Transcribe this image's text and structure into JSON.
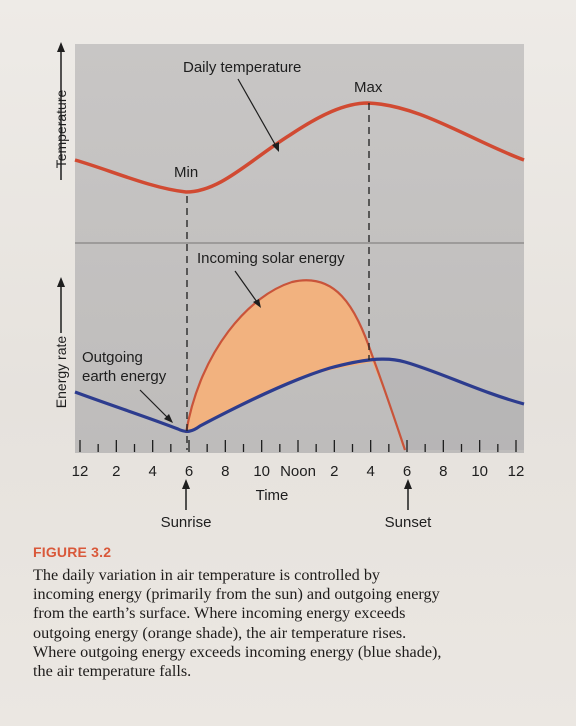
{
  "figure": {
    "labels": {
      "daily_temperature": "Daily temperature",
      "max": "Max",
      "min": "Min",
      "incoming_solar_energy": "Incoming solar energy",
      "outgoing_earth_energy_line1": "Outgoing",
      "outgoing_earth_energy_line2": "earth energy",
      "y_axis_temperature": "Temperature",
      "y_axis_energy_rate": "Energy rate",
      "x_axis_time": "Time",
      "sunrise": "Sunrise",
      "sunset": "Sunset"
    },
    "time_ticks": [
      "12",
      "2",
      "4",
      "6",
      "8",
      "10",
      "Noon",
      "2",
      "4",
      "6",
      "8",
      "10",
      "12"
    ],
    "colors": {
      "panel": "#c3c1c0",
      "temperature_curve": "#d14a32",
      "incoming_curve": "#c9543a",
      "incoming_fill": "#f2b27f",
      "outgoing_curve": "#2d3c8e",
      "divider": "#9d9b9a"
    }
  },
  "caption": {
    "title": "FIGURE 3.2",
    "lines": [
      "The daily variation in air temperature is controlled by",
      "incoming energy (primarily from the sun) and outgoing energy",
      "from the earth’s surface. Where incoming energy exceeds",
      "outgoing energy (orange shade), the air temperature rises.",
      "Where outgoing energy exceeds incoming energy (blue shade),",
      "the air temperature falls."
    ]
  }
}
